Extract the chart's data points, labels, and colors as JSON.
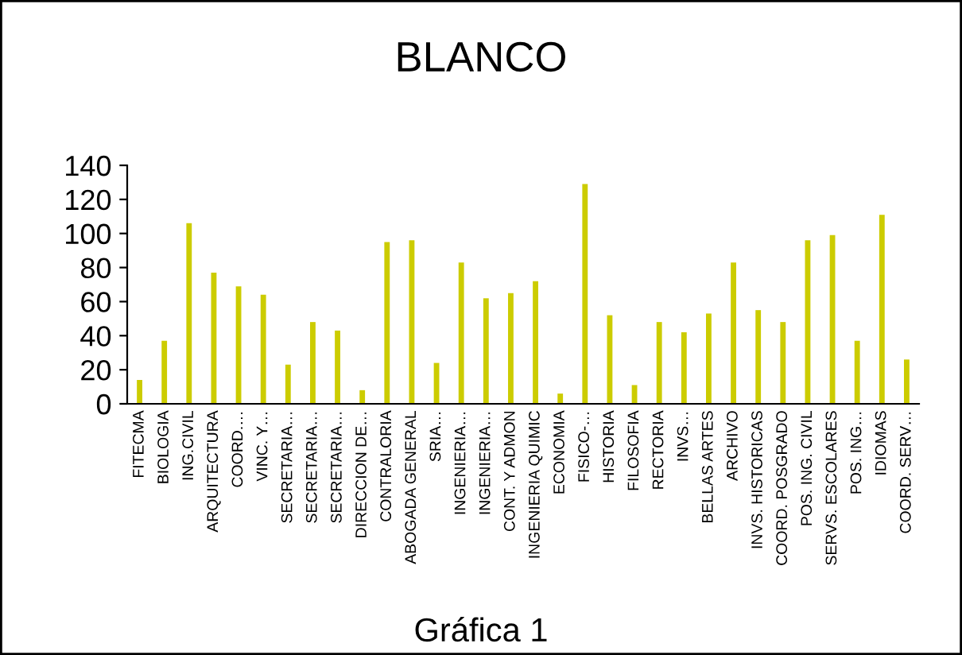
{
  "chart_data": {
    "type": "bar",
    "title": "BLANCO",
    "annotations": [
      "Gráfica 1"
    ],
    "categories": [
      "FITECMA",
      "BIOLOGIA",
      "ING.CIVIL",
      "ARQUITECTURA",
      "COORD.…",
      "VINC. Y…",
      "SECRETARIA…",
      "SECRETARIA…",
      "SECRETARIA…",
      "DIRECCION DE…",
      "CONTRALORIA",
      "ABOGADA GENERAL",
      "SRIA…",
      "INGENIERIA…",
      "INGENIERIA…",
      "CONT. Y ADMON",
      "INGENIERIA QUIMIC",
      "ECONOMIA",
      "FISICO-…",
      "HISTORIA",
      "FILOSOFIA",
      "RECTORIA",
      "INVS…",
      "BELLAS ARTES",
      "ARCHIVO",
      "INVS. HISTORICAS",
      "COORD. POSGRADO",
      "POS. ING. CIVIL",
      "SERVS. ESCOLARES",
      "POS. ING…",
      "IDIOMAS",
      "COORD. SERV…"
    ],
    "values": [
      14,
      37,
      106,
      77,
      69,
      64,
      23,
      48,
      43,
      8,
      95,
      96,
      24,
      83,
      62,
      65,
      72,
      6,
      129,
      52,
      11,
      48,
      42,
      53,
      83,
      55,
      48,
      96,
      99,
      37,
      111,
      26
    ],
    "color": "#cccc00",
    "ylim": [
      0,
      140
    ],
    "yticks": [
      0,
      20,
      40,
      60,
      80,
      100,
      120,
      140
    ],
    "grid": false,
    "legend": false
  }
}
